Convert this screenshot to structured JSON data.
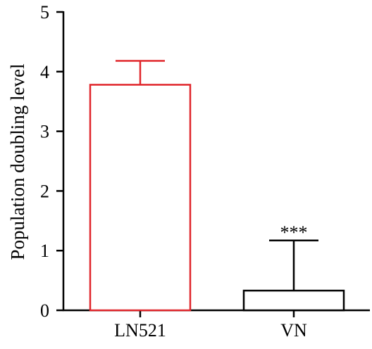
{
  "chart_data": {
    "type": "bar",
    "categories": [
      "LN521",
      "VN"
    ],
    "values": [
      3.78,
      0.33
    ],
    "error_upper": [
      4.18,
      1.17
    ],
    "bar_colors": [
      "#e0262b",
      "#000000"
    ],
    "annotations": [
      "",
      "***"
    ],
    "ylabel": "Population doubling level",
    "xlabel": "",
    "ylim": [
      0,
      5
    ],
    "yticks": [
      "0",
      "1",
      "2",
      "3",
      "4",
      "5"
    ],
    "grid": false,
    "legend": "none"
  }
}
